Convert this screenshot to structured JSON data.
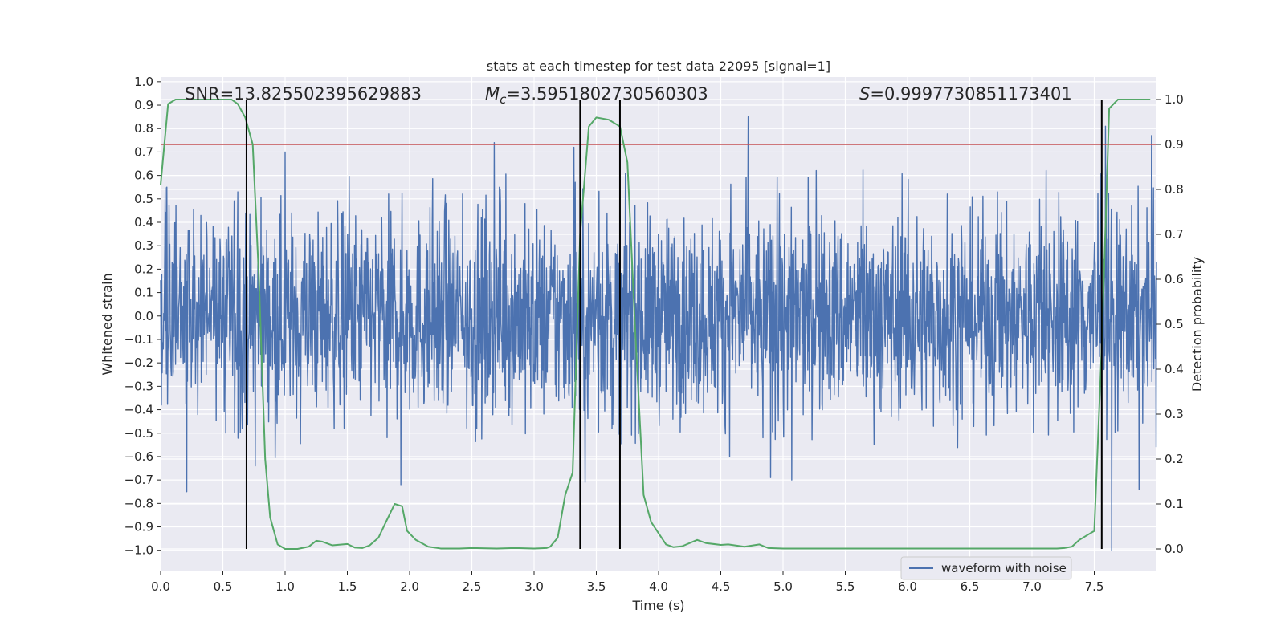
{
  "chart_data": {
    "type": "line",
    "title": "stats at each timestep for test data 22095 [signal=1]",
    "xlabel": "Time (s)",
    "ylabel_left": "Whitened strain",
    "ylabel_right": "Detection probability",
    "xlim": [
      0,
      8
    ],
    "ylim_left": [
      -1.09,
      1.02
    ],
    "ylim_right": [
      -0.05,
      1.05
    ],
    "x_ticks": [
      "0.0",
      "0.5",
      "1.0",
      "1.5",
      "2.0",
      "2.5",
      "3.0",
      "3.5",
      "4.0",
      "4.5",
      "5.0",
      "5.5",
      "6.0",
      "6.5",
      "7.0",
      "7.5"
    ],
    "y_left_ticks": [
      "-1.0",
      "-0.9",
      "-0.8",
      "-0.7",
      "-0.6",
      "-0.5",
      "-0.4",
      "-0.3",
      "-0.2",
      "-0.1",
      "0.0",
      "0.1",
      "0.2",
      "0.3",
      "0.4",
      "0.5",
      "0.6",
      "0.7",
      "0.8",
      "0.9",
      "1.0"
    ],
    "y_right_ticks": [
      "0.0",
      "0.1",
      "0.2",
      "0.3",
      "0.4",
      "0.5",
      "0.6",
      "0.7",
      "0.8",
      "0.9",
      "1.0"
    ],
    "grid": true,
    "annotations": {
      "snr": "SNR=13.825502395629883",
      "mc_symbol": "M",
      "mc_subscript": "c",
      "mc_value": "=3.5951802730560303",
      "s_symbol": "S",
      "s_value": "=0.9997730851173401"
    },
    "threshold_right": 0.9,
    "vertical_lines_x": [
      0.69,
      3.37,
      3.69,
      7.56
    ],
    "legend": {
      "label": "waveform with noise",
      "placement": "lower right"
    },
    "waveform": {
      "name": "waveform with noise",
      "color": "#4c72b0",
      "note_range_typical": [
        -0.4,
        0.45
      ],
      "peaks": [
        {
          "x": 0.05,
          "y": 0.55
        },
        {
          "x": 0.21,
          "y": -0.75
        },
        {
          "x": 0.62,
          "y": 0.53
        },
        {
          "x": 0.76,
          "y": -0.64
        },
        {
          "x": 1.0,
          "y": 0.7
        },
        {
          "x": 1.93,
          "y": -0.72
        },
        {
          "x": 2.68,
          "y": 0.74
        },
        {
          "x": 3.32,
          "y": 0.72
        },
        {
          "x": 3.41,
          "y": -0.71
        },
        {
          "x": 4.72,
          "y": 0.85
        },
        {
          "x": 4.9,
          "y": -0.69
        },
        {
          "x": 5.07,
          "y": -0.7
        },
        {
          "x": 7.59,
          "y": 0.81
        },
        {
          "x": 7.64,
          "y": -1.0
        },
        {
          "x": 7.86,
          "y": -0.74
        },
        {
          "x": 7.96,
          "y": 0.77
        }
      ]
    },
    "series": [
      {
        "name": "Detection probability",
        "color": "#55a868",
        "x": [
          0.0,
          0.06,
          0.12,
          0.2,
          0.3,
          0.4,
          0.5,
          0.57,
          0.62,
          0.68,
          0.74,
          0.79,
          0.84,
          0.88,
          0.94,
          1.0,
          1.1,
          1.19,
          1.25,
          1.3,
          1.38,
          1.5,
          1.56,
          1.62,
          1.68,
          1.75,
          1.81,
          1.88,
          1.94,
          1.98,
          2.05,
          2.15,
          2.25,
          2.4,
          2.5,
          2.7,
          2.85,
          3.0,
          3.1,
          3.13,
          3.19,
          3.25,
          3.31,
          3.37,
          3.44,
          3.5,
          3.6,
          3.69,
          3.75,
          3.81,
          3.88,
          3.94,
          4.06,
          4.12,
          4.19,
          4.31,
          4.38,
          4.5,
          4.56,
          4.69,
          4.81,
          4.88,
          5.0,
          5.31,
          5.5,
          6.0,
          6.5,
          7.0,
          7.2,
          7.26,
          7.32,
          7.38,
          7.44,
          7.5,
          7.56,
          7.62,
          7.69,
          7.75,
          7.88,
          7.95
        ],
        "values": [
          0.81,
          0.99,
          1.0,
          1.0,
          1.0,
          1.0,
          1.0,
          1.0,
          0.99,
          0.96,
          0.9,
          0.6,
          0.2,
          0.07,
          0.01,
          0.0,
          0.0,
          0.005,
          0.018,
          0.016,
          0.008,
          0.011,
          0.003,
          0.002,
          0.008,
          0.025,
          0.06,
          0.1,
          0.095,
          0.04,
          0.02,
          0.005,
          0.001,
          0.001,
          0.002,
          0.001,
          0.002,
          0.001,
          0.002,
          0.005,
          0.025,
          0.12,
          0.17,
          0.7,
          0.94,
          0.96,
          0.955,
          0.94,
          0.86,
          0.5,
          0.12,
          0.06,
          0.01,
          0.004,
          0.006,
          0.02,
          0.013,
          0.009,
          0.01,
          0.005,
          0.01,
          0.002,
          0.001,
          0.001,
          0.001,
          0.001,
          0.001,
          0.001,
          0.001,
          0.002,
          0.005,
          0.02,
          0.03,
          0.04,
          0.45,
          0.98,
          1.0,
          1.0,
          1.0,
          1.0
        ]
      }
    ]
  }
}
